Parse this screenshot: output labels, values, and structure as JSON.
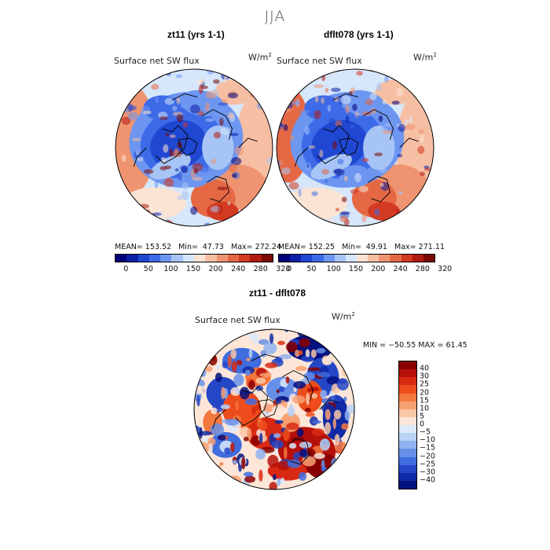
{
  "season_title": "JJA",
  "panels": [
    {
      "title": "zt11 (yrs 1-1)",
      "variable": "Surface net SW flux",
      "units_base": "W/m",
      "units_exp": "2",
      "stats": {
        "mean_label": "MEAN=",
        "mean": "153.52",
        "min_label": "Min=",
        "min": "47.73",
        "max_label": "Max=",
        "max": "272.24"
      }
    },
    {
      "title": "dflt078 (yrs 1-1)",
      "variable": "Surface net SW flux",
      "units_base": "W/m",
      "units_exp": "2",
      "stats": {
        "mean_label": "MEAN=",
        "mean": "152.25",
        "min_label": "Min=",
        "min": "49.91",
        "max_label": "Max=",
        "max": "271.11"
      }
    }
  ],
  "diff_panel": {
    "title": "zt11 - dflt078",
    "variable": "Surface net SW flux",
    "units_base": "W/m",
    "units_exp": "2",
    "minmax_text": "MIN = −50.55 MAX =  61.45"
  },
  "chart_data": [
    {
      "type": "heatmap",
      "title": "zt11 (yrs 1-1)",
      "variable": "Surface net SW flux",
      "units": "W/m2",
      "projection": "north polar stereographic",
      "mean": 153.52,
      "min": 47.73,
      "max": 272.24,
      "colorbar_ticks": [
        "0",
        "50",
        "100",
        "150",
        "200",
        "240",
        "280",
        "320"
      ],
      "colorbar_colors": [
        "#00007a",
        "#0c1fa6",
        "#1f47d2",
        "#3d6be8",
        "#6d96f0",
        "#a7c4f6",
        "#d6e6fb",
        "#fbe4d4",
        "#f6bfa3",
        "#ef9470",
        "#e56845",
        "#d23a22",
        "#b01a10",
        "#7a0a06"
      ]
    },
    {
      "type": "heatmap",
      "title": "dflt078 (yrs 1-1)",
      "variable": "Surface net SW flux",
      "units": "W/m2",
      "projection": "north polar stereographic",
      "mean": 152.25,
      "min": 49.91,
      "max": 271.11,
      "colorbar_ticks": [
        "0",
        "50",
        "100",
        "150",
        "200",
        "240",
        "280",
        "320"
      ],
      "colorbar_colors": [
        "#00007a",
        "#0c1fa6",
        "#1f47d2",
        "#3d6be8",
        "#6d96f0",
        "#a7c4f6",
        "#d6e6fb",
        "#fbe4d4",
        "#f6bfa3",
        "#ef9470",
        "#e56845",
        "#d23a22",
        "#b01a10",
        "#7a0a06"
      ]
    },
    {
      "type": "heatmap",
      "title": "zt11 - dflt078",
      "variable": "Surface net SW flux",
      "units": "W/m2",
      "projection": "north polar stereographic",
      "min": -50.55,
      "max": 61.45,
      "colorbar_ticks": [
        "40",
        "30",
        "25",
        "20",
        "15",
        "10",
        "5",
        "0",
        "−5",
        "−10",
        "−15",
        "−20",
        "−25",
        "−30",
        "−40"
      ],
      "colorbar_colors": [
        "#8a0000",
        "#b5100a",
        "#d82a12",
        "#ee4c1c",
        "#f4773d",
        "#f7a072",
        "#f9c6a6",
        "#fde6d8",
        "#dce9fa",
        "#b9d2f6",
        "#8fb2f0",
        "#6690e8",
        "#3f6cde",
        "#2447c6",
        "#102aa6",
        "#03117e"
      ]
    }
  ]
}
